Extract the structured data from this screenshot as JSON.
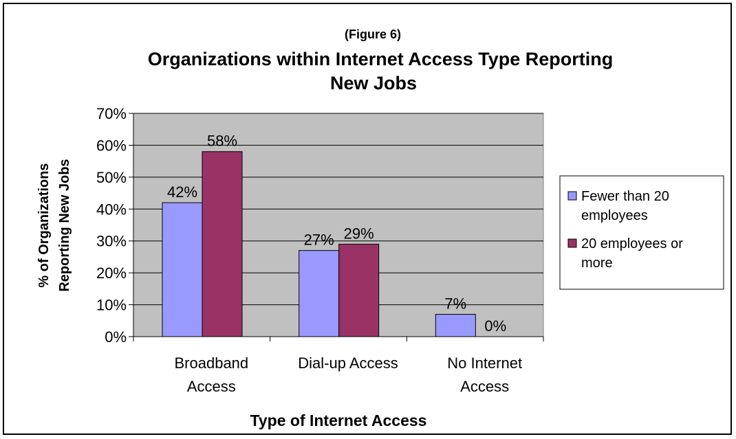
{
  "chart_data": {
    "type": "bar",
    "subtitle": "(Figure 6)",
    "title_lines": [
      "Organizations within Internet Access Type Reporting",
      "New Jobs"
    ],
    "xlabel": "Type of Internet Access",
    "ylabel_lines": [
      "% of Organizations",
      "Reporting New Jobs"
    ],
    "categories": [
      {
        "lines": [
          "Broadband",
          "Access"
        ]
      },
      {
        "lines": [
          "Dial-up Access"
        ]
      },
      {
        "lines": [
          "No Internet",
          "Access"
        ]
      }
    ],
    "series": [
      {
        "name_lines": [
          "Fewer than 20",
          "employees"
        ],
        "color": "#9999ff",
        "values": [
          42,
          27,
          7
        ],
        "labels": [
          "42%",
          "27%",
          "7%"
        ]
      },
      {
        "name_lines": [
          "20 employees or",
          "more"
        ],
        "color": "#993366",
        "values": [
          58,
          29,
          0
        ],
        "labels": [
          "58%",
          "29%",
          "0%"
        ]
      }
    ],
    "ylim": [
      0,
      70
    ],
    "ytick_step": 10,
    "ytick_labels": [
      "0%",
      "10%",
      "20%",
      "30%",
      "40%",
      "50%",
      "60%",
      "70%"
    ],
    "plot_background": "#c0c0c0",
    "grid": true,
    "legend_position": "right"
  }
}
